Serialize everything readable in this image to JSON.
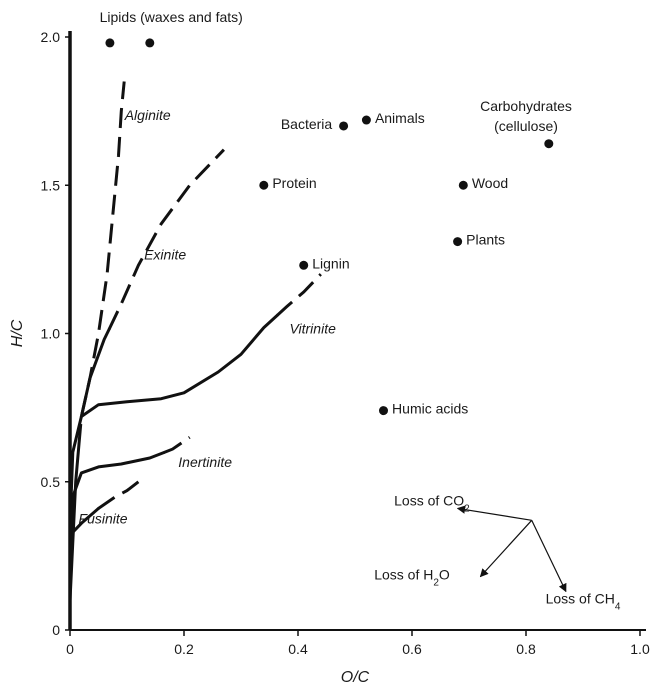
{
  "chart_data": {
    "type": "scatter",
    "xlabel": "O/C",
    "ylabel": "H/C",
    "xlim": [
      0,
      1.0
    ],
    "ylim": [
      0,
      2.0
    ],
    "x_ticks": [
      "0",
      "0.2",
      "0.4",
      "0.6",
      "0.8",
      "1.0"
    ],
    "y_ticks": [
      "0",
      "0.5",
      "1.0",
      "1.5",
      "2.0"
    ],
    "grid": false,
    "colors": {
      "ink": "#111111",
      "background": "#ffffff"
    },
    "points": [
      {
        "label": "Lipids (waxes and fats)",
        "x": 0.07,
        "y": 1.98
      },
      {
        "label": "",
        "x": 0.14,
        "y": 1.98
      },
      {
        "label": "Bacteria",
        "x": 0.48,
        "y": 1.7
      },
      {
        "label": "Animals",
        "x": 0.52,
        "y": 1.72
      },
      {
        "label": "Carbohydrates",
        "label2": "(cellulose)",
        "x": 0.84,
        "y": 1.64
      },
      {
        "label": "Protein",
        "x": 0.34,
        "y": 1.5
      },
      {
        "label": "Wood",
        "x": 0.69,
        "y": 1.5
      },
      {
        "label": "Plants",
        "x": 0.68,
        "y": 1.31
      },
      {
        "label": "Lignin",
        "x": 0.41,
        "y": 1.23
      },
      {
        "label": "Humic acids",
        "x": 0.55,
        "y": 0.74
      }
    ],
    "curves": [
      {
        "name": "Alginite",
        "points": [
          [
            0.0,
            0.1
          ],
          [
            0.01,
            0.5
          ],
          [
            0.02,
            0.72
          ],
          [
            0.035,
            0.85
          ],
          [
            0.05,
            1.0
          ],
          [
            0.065,
            1.2
          ],
          [
            0.075,
            1.4
          ],
          [
            0.085,
            1.6
          ],
          [
            0.09,
            1.75
          ],
          [
            0.095,
            1.85
          ]
        ],
        "solid_until": 0.3
      },
      {
        "name": "Exinite",
        "points": [
          [
            0.02,
            0.72
          ],
          [
            0.035,
            0.85
          ],
          [
            0.06,
            0.98
          ],
          [
            0.09,
            1.1
          ],
          [
            0.12,
            1.23
          ],
          [
            0.16,
            1.37
          ],
          [
            0.21,
            1.5
          ],
          [
            0.27,
            1.62
          ]
        ],
        "solid_until": 0.3
      },
      {
        "name": "Vitrinite",
        "points": [
          [
            0.0,
            0.35
          ],
          [
            0.005,
            0.6
          ],
          [
            0.02,
            0.72
          ],
          [
            0.05,
            0.76
          ],
          [
            0.1,
            0.77
          ],
          [
            0.16,
            0.78
          ],
          [
            0.2,
            0.8
          ],
          [
            0.26,
            0.87
          ],
          [
            0.3,
            0.93
          ],
          [
            0.34,
            1.02
          ],
          [
            0.38,
            1.09
          ],
          [
            0.41,
            1.14
          ],
          [
            0.44,
            1.2
          ]
        ],
        "solid_until": 0.85
      },
      {
        "name": "Inertinite",
        "points": [
          [
            0.0,
            0.25
          ],
          [
            0.005,
            0.45
          ],
          [
            0.02,
            0.53
          ],
          [
            0.05,
            0.55
          ],
          [
            0.09,
            0.56
          ],
          [
            0.14,
            0.58
          ],
          [
            0.18,
            0.61
          ],
          [
            0.21,
            0.65
          ]
        ],
        "solid_until": 0.85
      },
      {
        "name": "Fusinite",
        "points": [
          [
            0.0,
            0.2
          ],
          [
            0.005,
            0.33
          ],
          [
            0.02,
            0.36
          ],
          [
            0.05,
            0.41
          ],
          [
            0.08,
            0.45
          ],
          [
            0.1,
            0.47
          ],
          [
            0.12,
            0.5
          ]
        ],
        "solid_until": 0.6
      }
    ],
    "loss_vectors": {
      "origin": [
        0.81,
        0.37
      ],
      "items": [
        {
          "label": "Loss of CO",
          "sub": "2",
          "to": [
            0.68,
            0.41
          ]
        },
        {
          "label": "Loss of H",
          "sub": "2",
          "suffix": "O",
          "to": [
            0.72,
            0.18
          ]
        },
        {
          "label": "Loss of CH",
          "sub": "4",
          "to": [
            0.87,
            0.13
          ]
        }
      ]
    }
  }
}
